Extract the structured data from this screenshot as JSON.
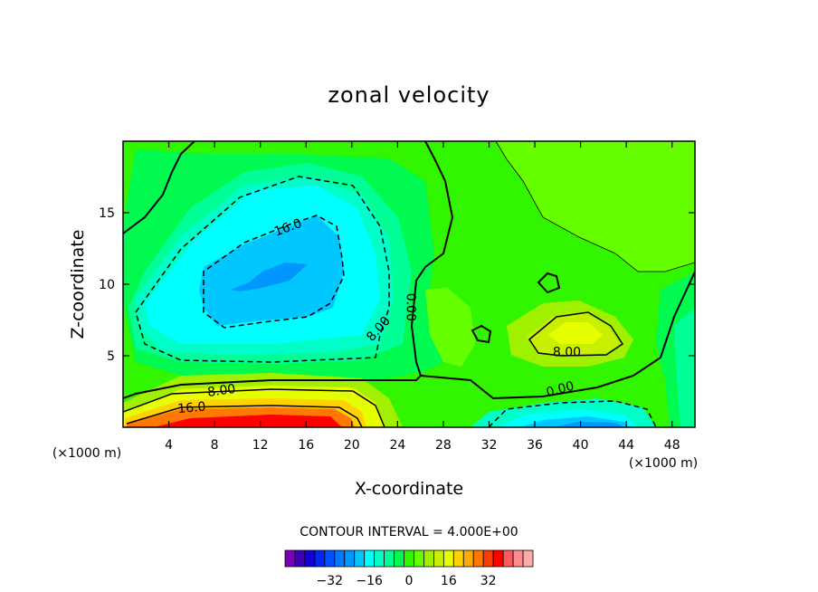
{
  "chart_data": {
    "type": "heatmap",
    "subtype": "filled-contour",
    "title": "zonal velocity",
    "xlabel": "X-coordinate",
    "ylabel": "Z-coordinate",
    "x_unit_left": "(×1000 m)",
    "x_unit_right": "(×1000 m)",
    "xlim": [
      0,
      50
    ],
    "ylim": [
      0,
      20
    ],
    "x_ticks": [
      4,
      8,
      12,
      16,
      20,
      24,
      28,
      32,
      36,
      40,
      44,
      48
    ],
    "y_ticks": [
      5,
      10,
      15
    ],
    "contour_interval_text": "CONTOUR INTERVAL = 4.000E+00",
    "contour_interval": 4,
    "contour_labels": [
      {
        "text": "16.0",
        "x": 14.4,
        "y": 14.0,
        "angle": -20
      },
      {
        "text": "8.00",
        "x": 22.3,
        "y": 6.9,
        "angle": -48
      },
      {
        "text": "0.00",
        "x": 25.2,
        "y": 8.4,
        "angle": 90
      },
      {
        "text": "8.00",
        "x": 38.8,
        "y": 5.3,
        "angle": 0
      },
      {
        "text": "0.00",
        "x": 38.2,
        "y": 2.7,
        "angle": -15
      },
      {
        "text": "8.00",
        "x": 8.6,
        "y": 2.6,
        "angle": -8
      },
      {
        "text": "16.0",
        "x": 6.0,
        "y": 1.4,
        "angle": -5
      }
    ],
    "field_features": [
      {
        "kind": "max",
        "x": 12,
        "y": 0.2,
        "value": 32
      },
      {
        "kind": "max",
        "x": 40.5,
        "y": 6.9,
        "value": 12
      },
      {
        "kind": "min",
        "x": 14.5,
        "y": 10.5,
        "value": -20
      },
      {
        "kind": "min",
        "x": 41,
        "y": 0.3,
        "value": -24
      }
    ],
    "colorbar": {
      "tick_labels": [
        "−32",
        "−16",
        "0",
        "16",
        "32"
      ],
      "tick_values": [
        -32,
        -16,
        0,
        16,
        32
      ],
      "levels": [
        -36,
        -32,
        -28,
        -24,
        -20,
        -16,
        -12,
        -8,
        -4,
        0,
        4,
        8,
        12,
        16,
        20,
        24,
        28,
        32,
        36
      ],
      "colors": [
        "#7a00b4",
        "#3a00b4",
        "#1400d2",
        "#0028f0",
        "#0050ff",
        "#0078ff",
        "#0096ff",
        "#00c8ff",
        "#00ffff",
        "#00ffc8",
        "#00ff96",
        "#00fa50",
        "#32f500",
        "#66ff00",
        "#a0f000",
        "#c8f000",
        "#e6ff00",
        "#ffd200",
        "#ffaa00",
        "#ff7800",
        "#ff3c00",
        "#ff0000",
        "#ff5a5a",
        "#ff8c8c",
        "#ffaaaa"
      ]
    }
  }
}
